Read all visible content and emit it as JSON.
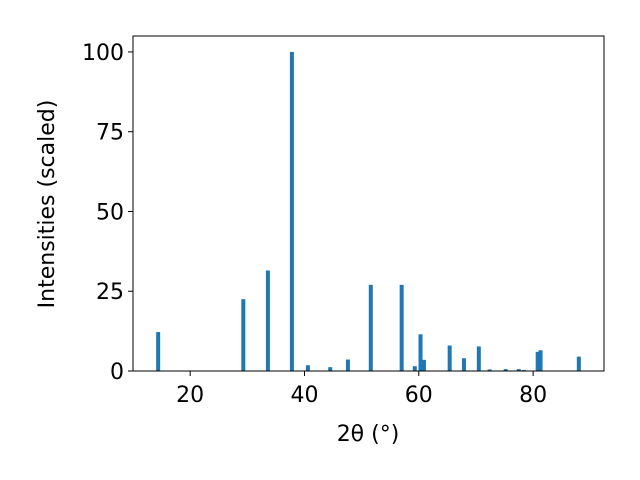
{
  "chart_data": {
    "type": "bar",
    "xlabel": "2θ (°)",
    "ylabel": "Intensities (scaled)",
    "x": [
      14.4,
      29.3,
      33.6,
      37.8,
      40.6,
      44.5,
      47.6,
      51.6,
      57.0,
      59.3,
      60.3,
      60.9,
      65.4,
      67.9,
      70.5,
      72.4,
      75.2,
      77.5,
      78.4,
      80.8,
      81.3,
      88.0
    ],
    "values": [
      12.2,
      22.5,
      31.5,
      100,
      1.8,
      1.2,
      3.6,
      27,
      27,
      1.5,
      11.5,
      3.5,
      8,
      4,
      7.7,
      0.5,
      0.6,
      0.6,
      0.3,
      6,
      6.5,
      4.5
    ],
    "color": "#1f77b4",
    "xlim": [
      10.0,
      92.4
    ],
    "ylim": [
      0,
      105
    ],
    "xticks": [
      20,
      40,
      60,
      80
    ],
    "yticks": [
      0,
      25,
      50,
      75,
      100
    ]
  }
}
